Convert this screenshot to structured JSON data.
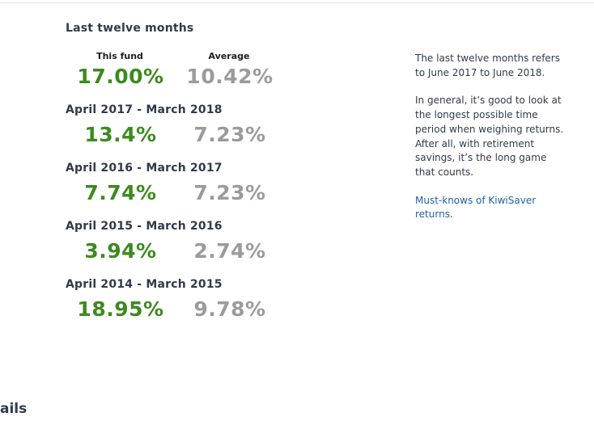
{
  "header": {
    "title": "Last twelve months"
  },
  "columns": {
    "fund_label": "This fund",
    "avg_label": "Average"
  },
  "last_twelve": {
    "fund": "17.00%",
    "avg": "10.42%"
  },
  "periods": [
    {
      "title": "April 2017 - March 2018",
      "fund": "13.4%",
      "avg": "7.23%"
    },
    {
      "title": "April 2016 - March 2017",
      "fund": "7.74%",
      "avg": "7.23%"
    },
    {
      "title": "April 2015 - March 2016",
      "fund": "3.94%",
      "avg": "2.74%"
    },
    {
      "title": "April 2014 - March 2015",
      "fund": "18.95%",
      "avg": "9.78%"
    }
  ],
  "sidebar": {
    "para1": "The last twelve months refers to June 2017 to June 2018.",
    "para2": "In general, it’s good to look at the longest possible time period when weighing returns. After all, with retirement savings, it’s the long game that counts.",
    "link_text": "Must-knows of KiwiSaver returns",
    "link_suffix": "."
  },
  "footer": {
    "partial_heading": "ails"
  },
  "colors": {
    "fund": "#3d8a1f",
    "average": "#9b9b9b",
    "link": "#1f5fa8",
    "text": "#2f3b4a"
  }
}
